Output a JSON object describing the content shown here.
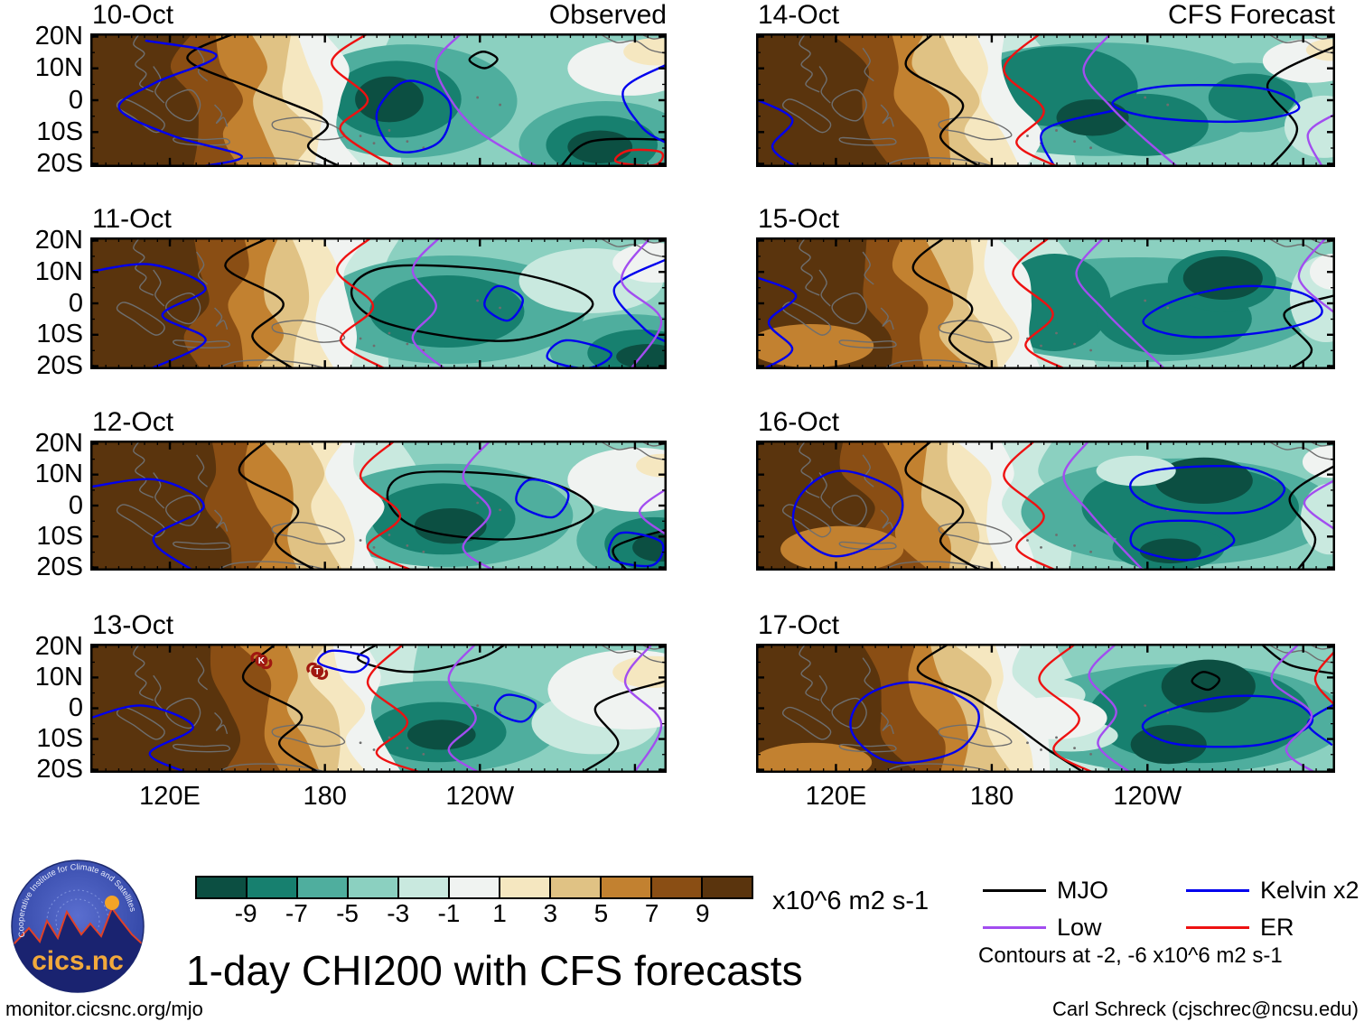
{
  "chart_data": {
    "type": "filled_contour_map_grid",
    "title": "1-day CHI200 with CFS forecasts",
    "field": "CHI200 velocity potential anomaly maps over the tropical Indo-Pacific",
    "units": "x10^6 m2 s-1",
    "columns": [
      {
        "heading": "Observed",
        "panels": [
          "10-Oct",
          "11-Oct",
          "12-Oct",
          "13-Oct"
        ]
      },
      {
        "heading": "CFS Forecast",
        "panels": [
          "14-Oct",
          "15-Oct",
          "16-Oct",
          "17-Oct"
        ]
      }
    ],
    "x_axis": {
      "tick_labels": [
        "120E",
        "180",
        "120W"
      ]
    },
    "y_axis": {
      "tick_labels": [
        "20N",
        "10N",
        "0",
        "10S",
        "20S"
      ]
    },
    "colorbar": {
      "tick_labels": [
        "-9",
        "-7",
        "-5",
        "-3",
        "-1",
        "1",
        "3",
        "5",
        "7",
        "9"
      ],
      "cell_colors": [
        "#0c4f42",
        "#17806f",
        "#4fae9e",
        "#8bd0c0",
        "#c9e9df",
        "#f0f3f1",
        "#f5e7c0",
        "#e0c284",
        "#c28130",
        "#8a4e14",
        "#5a340d"
      ]
    },
    "legend": [
      {
        "label": "MJO",
        "color": "#000000"
      },
      {
        "label": "Kelvin x2",
        "color": "#0000ee"
      },
      {
        "label": "Low",
        "color": "#a24df0"
      },
      {
        "label": "ER",
        "color": "#ee1111"
      }
    ],
    "contour_note": "Contours at -2, -6 x10^6 m2 s-1",
    "storm_markers": [
      {
        "panel": "13-Oct",
        "labels": [
          "K",
          "T"
        ]
      }
    ]
  },
  "footer": {
    "source_url": "monitor.cicsnc.org/mjo",
    "credit": "Carl Schreck (cjschrec@ncsu.edu)"
  },
  "logo": {
    "ring_text": "Cooperative Institute for Climate and Satellites",
    "name": "cics.nc"
  }
}
